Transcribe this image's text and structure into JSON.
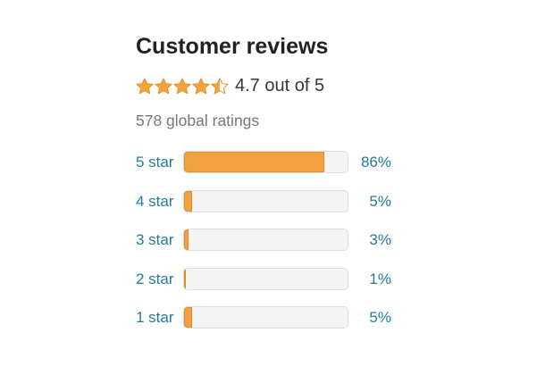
{
  "header": {
    "title": "Customer reviews"
  },
  "rating": {
    "stars_value": 4.5,
    "summary": "4.7 out of 5",
    "global_ratings": "578 global ratings"
  },
  "histogram": {
    "rows": [
      {
        "label": "5 star",
        "percent": 86,
        "percent_label": "86%"
      },
      {
        "label": "4 star",
        "percent": 5,
        "percent_label": "5%"
      },
      {
        "label": "3 star",
        "percent": 3,
        "percent_label": "3%"
      },
      {
        "label": "2 star",
        "percent": 1,
        "percent_label": "1%"
      },
      {
        "label": "1 star",
        "percent": 5,
        "percent_label": "5%"
      }
    ]
  },
  "colors": {
    "heading": "#1f2126",
    "dark_text": "#33373f",
    "gray_text": "#76787b",
    "link_teal": "#247c9c",
    "bar_orange": "#f1a140",
    "bar_orange_border": "#e18d2d",
    "track_bg": "#f4f4f4",
    "track_border": "#dedede",
    "star_fill": "#f3a43c",
    "star_stroke": "#e5902f"
  }
}
